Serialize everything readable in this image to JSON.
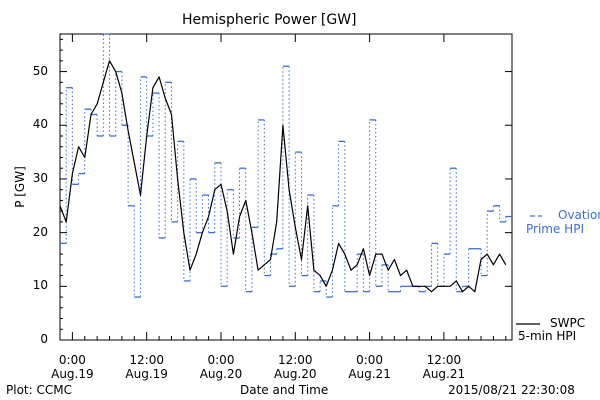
{
  "chart_data": {
    "type": "line",
    "title": "Hemispheric Power [GW]",
    "ylabel": "P [GW]",
    "xlabel": "Date and Time",
    "ylim": [
      0,
      57
    ],
    "yticks": [
      0,
      10,
      20,
      30,
      40,
      50
    ],
    "xlim_hours": [
      -2,
      71
    ],
    "xticks": [
      {
        "hour": 0,
        "time": "0:00",
        "date": "Aug.19"
      },
      {
        "hour": 12,
        "time": "12:00",
        "date": "Aug.19"
      },
      {
        "hour": 24,
        "time": "0:00",
        "date": "Aug.20"
      },
      {
        "hour": 36,
        "time": "12:00",
        "date": "Aug.20"
      },
      {
        "hour": 48,
        "time": "0:00",
        "date": "Aug.21"
      },
      {
        "hour": 60,
        "time": "12:00",
        "date": "Aug.21"
      }
    ],
    "series": [
      {
        "name": "Ovation Prime HPI",
        "style": "dashed-step",
        "color": "#3b6fd4",
        "x_hours": [
          -2,
          -1,
          0,
          1,
          2,
          3,
          4,
          5,
          6,
          7,
          8,
          9,
          10,
          11,
          12,
          13,
          14,
          15,
          16,
          17,
          18,
          19,
          20,
          21,
          22,
          23,
          24,
          25,
          26,
          27,
          28,
          29,
          30,
          31,
          32,
          33,
          34,
          35,
          36,
          37,
          38,
          39,
          40,
          41,
          42,
          43,
          44,
          45,
          46,
          47,
          48,
          49,
          50,
          51,
          52,
          53,
          54,
          55,
          56,
          57,
          58,
          59,
          60,
          61,
          62,
          63,
          64,
          65,
          66,
          67,
          68,
          69,
          70
        ],
        "values": [
          18,
          47,
          29,
          31,
          43,
          42,
          38,
          57,
          38,
          50,
          40,
          25,
          8,
          49,
          38,
          46,
          19,
          48,
          22,
          37,
          11,
          30,
          20,
          27,
          20,
          33,
          10,
          28,
          19,
          32,
          9,
          21,
          41,
          12,
          16,
          17,
          51,
          10,
          35,
          12,
          27,
          9,
          11,
          8,
          25,
          37,
          9,
          9,
          16,
          9,
          41,
          10,
          14,
          9,
          9,
          10,
          10,
          10,
          9,
          10,
          18,
          10,
          16,
          32,
          9,
          10,
          17,
          17,
          12,
          24,
          25,
          22,
          23
        ]
      },
      {
        "name": "SWPC 5-min HPI",
        "style": "solid",
        "color": "#000000",
        "x_hours": [
          -2,
          -1,
          0,
          1,
          2,
          3,
          4,
          5,
          6,
          7,
          8,
          9,
          10,
          11,
          12,
          13,
          14,
          15,
          16,
          17,
          18,
          19,
          20,
          21,
          22,
          23,
          24,
          25,
          26,
          27,
          28,
          29,
          30,
          31,
          32,
          33,
          34,
          35,
          36,
          37,
          38,
          39,
          40,
          41,
          42,
          43,
          44,
          45,
          46,
          47,
          48,
          49,
          50,
          51,
          52,
          53,
          54,
          55,
          56,
          57,
          58,
          59,
          60,
          61,
          62,
          63,
          64,
          65,
          66,
          67,
          68,
          69,
          70
        ],
        "values": [
          25,
          22,
          31,
          36,
          34,
          42,
          44,
          48,
          52,
          50,
          46,
          39,
          33,
          27,
          38,
          47,
          49,
          45,
          42,
          30,
          20,
          13,
          16,
          20,
          23,
          28,
          29,
          24,
          16,
          23,
          26,
          20,
          13,
          14,
          15,
          22,
          40,
          28,
          21,
          15,
          25,
          13,
          12,
          10,
          13,
          18,
          16,
          13,
          14,
          17,
          12,
          16,
          16,
          13,
          15,
          12,
          13,
          10,
          10,
          10,
          9,
          10,
          10,
          10,
          11,
          9,
          10,
          9,
          15,
          16,
          14,
          16,
          14
        ]
      }
    ],
    "legend": [
      {
        "series": 0,
        "lines": [
          "Ovation",
          "Prime HPI"
        ],
        "placement": "right"
      },
      {
        "series": 1,
        "lines": [
          "SWPC",
          "5-min HPI"
        ],
        "placement": "right-bottom"
      }
    ]
  },
  "footer": {
    "left": "Plot: CCMC",
    "center": "Date and Time",
    "right": "2015/08/21 22:30:08"
  }
}
